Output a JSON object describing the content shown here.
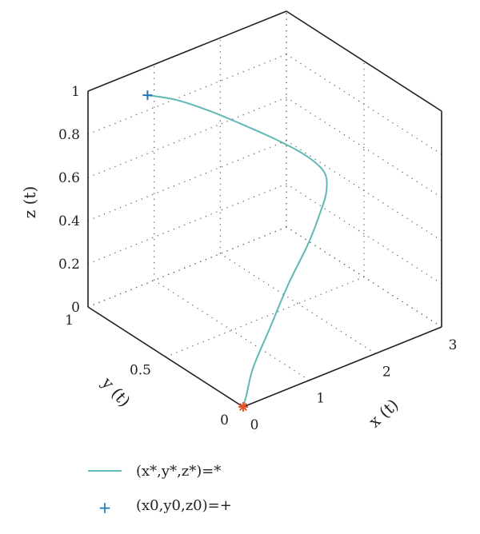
{
  "chart_data": {
    "type": "line",
    "view": "3d",
    "xlabel": "x (t)",
    "ylabel": "y (t)",
    "zlabel": "z (t)",
    "xlim": [
      0,
      3
    ],
    "ylim": [
      0,
      1
    ],
    "zlim": [
      0,
      1
    ],
    "x_ticks": [
      "0",
      "1",
      "2",
      "3"
    ],
    "y_ticks": [
      "0",
      "0.5",
      "1"
    ],
    "z_ticks": [
      "0",
      "0.2",
      "0.4",
      "0.6",
      "0.8",
      "1"
    ],
    "grid": true,
    "legend_position": "bottom-left",
    "series": [
      {
        "name": "(x*,y*,z*)=*",
        "color": "#5fb8b4",
        "points": [
          {
            "x": 0.0,
            "y": 0.0,
            "z": 0.0
          },
          {
            "x": 0.05,
            "y": 0.0,
            "z": 0.05
          },
          {
            "x": 0.2,
            "y": 0.02,
            "z": 0.15
          },
          {
            "x": 0.45,
            "y": 0.02,
            "z": 0.3
          },
          {
            "x": 0.75,
            "y": 0.03,
            "z": 0.46
          },
          {
            "x": 1.05,
            "y": 0.03,
            "z": 0.61
          },
          {
            "x": 1.25,
            "y": 0.04,
            "z": 0.72
          },
          {
            "x": 1.4,
            "y": 0.06,
            "z": 0.8
          },
          {
            "x": 1.5,
            "y": 0.12,
            "z": 0.85
          },
          {
            "x": 1.5,
            "y": 0.25,
            "z": 0.87
          },
          {
            "x": 1.45,
            "y": 0.42,
            "z": 0.87
          },
          {
            "x": 1.35,
            "y": 0.6,
            "z": 0.87
          },
          {
            "x": 1.25,
            "y": 0.75,
            "z": 0.87
          },
          {
            "x": 1.1,
            "y": 0.9,
            "z": 0.87
          },
          {
            "x": 0.9,
            "y": 1.0,
            "z": 0.87
          }
        ]
      },
      {
        "name": "(x0,y0,z0)=+",
        "color": "#1f77b4",
        "marker": "+",
        "points": [
          {
            "x": 0.9,
            "y": 1.0,
            "z": 0.87
          }
        ]
      }
    ],
    "equilibrium_marker": {
      "color": "#e8542a",
      "marker": "*",
      "x": 0.0,
      "y": 0.0,
      "z": 0.0
    }
  }
}
